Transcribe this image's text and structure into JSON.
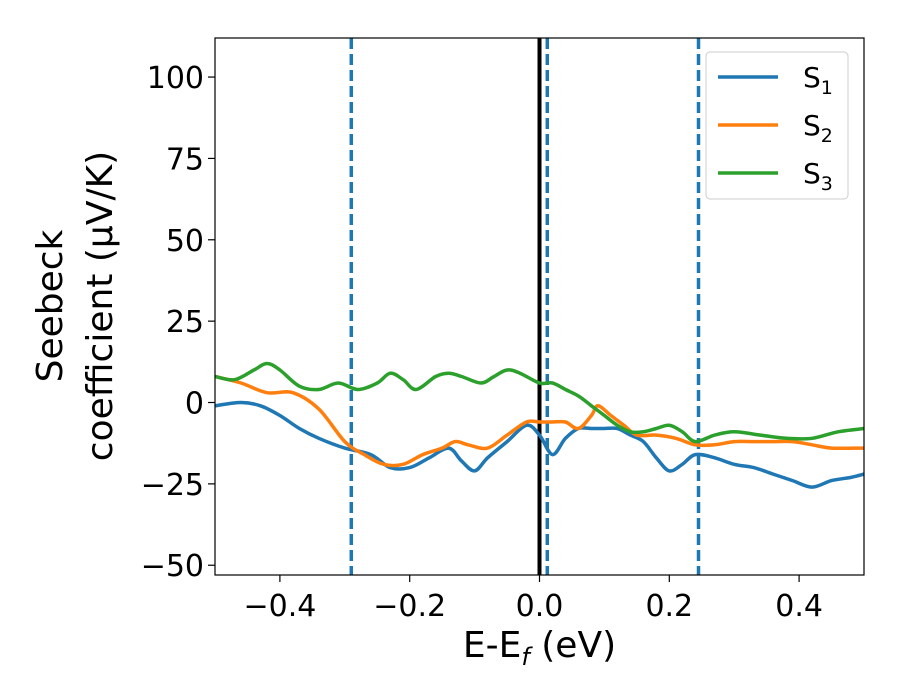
{
  "chart_data": {
    "type": "line",
    "title": "",
    "xlabel": "E-E_f (eV)",
    "xlabel_parts": {
      "main": "E-E",
      "sub": "f",
      "tail": " (eV)"
    },
    "ylabel_line1": "Seebeck",
    "ylabel_line2": "coefficient  (μV/K)",
    "xlim": [
      -0.5,
      0.5
    ],
    "ylim": [
      -53,
      112
    ],
    "xticks": [
      -0.4,
      -0.2,
      0.0,
      0.2,
      0.4
    ],
    "xtick_labels": [
      "−0.4",
      "−0.2",
      "0.0",
      "0.2",
      "0.4"
    ],
    "yticks": [
      -50,
      -25,
      0,
      25,
      50,
      75,
      100
    ],
    "ytick_labels": [
      "−50",
      "−25",
      "0",
      "25",
      "50",
      "75",
      "100"
    ],
    "legend_position": "top-right",
    "vertical_lines": [
      {
        "x": -0.29,
        "style": "dashed",
        "color": "#1f77b4"
      },
      {
        "x": 0.0,
        "style": "solid",
        "color": "#000000"
      },
      {
        "x": 0.012,
        "style": "dashed",
        "color": "#1f77b4"
      },
      {
        "x": 0.245,
        "style": "dashed",
        "color": "#1f77b4"
      }
    ],
    "series": [
      {
        "name": "S1",
        "label_main": "S",
        "label_sub": "1",
        "color": "#1f77b4",
        "x": [
          -0.5,
          -0.46,
          -0.43,
          -0.4,
          -0.37,
          -0.34,
          -0.3,
          -0.26,
          -0.23,
          -0.2,
          -0.17,
          -0.14,
          -0.12,
          -0.1,
          -0.08,
          -0.05,
          -0.02,
          0.0,
          0.02,
          0.04,
          0.06,
          0.08,
          0.1,
          0.12,
          0.14,
          0.16,
          0.18,
          0.2,
          0.22,
          0.24,
          0.27,
          0.3,
          0.33,
          0.36,
          0.39,
          0.42,
          0.45,
          0.48,
          0.5
        ],
        "values": [
          -1,
          0,
          -1,
          -4,
          -8,
          -11,
          -14,
          -16,
          -20,
          -20,
          -17,
          -14,
          -18,
          -21,
          -17,
          -12,
          -7,
          -10,
          -16,
          -11,
          -8,
          -8,
          -8,
          -8,
          -10,
          -12,
          -17,
          -21,
          -19,
          -16,
          -17,
          -19,
          -20,
          -22,
          -24,
          -26,
          -24,
          -23,
          -22
        ]
      },
      {
        "name": "S2",
        "label_main": "S",
        "label_sub": "2",
        "color": "#ff7f0e",
        "x": [
          -0.5,
          -0.46,
          -0.42,
          -0.38,
          -0.34,
          -0.3,
          -0.27,
          -0.24,
          -0.21,
          -0.18,
          -0.15,
          -0.13,
          -0.11,
          -0.08,
          -0.05,
          -0.02,
          0.0,
          0.02,
          0.04,
          0.06,
          0.08,
          0.09,
          0.11,
          0.13,
          0.15,
          0.18,
          0.21,
          0.24,
          0.27,
          0.3,
          0.33,
          0.36,
          0.39,
          0.42,
          0.45,
          0.5
        ],
        "values": [
          8,
          6,
          3,
          3,
          -2,
          -12,
          -16,
          -19,
          -19,
          -16,
          -14,
          -12,
          -13,
          -14,
          -10,
          -6,
          -6,
          -6,
          -6,
          -8,
          -4,
          -1,
          -4,
          -7,
          -10,
          -10,
          -11,
          -13,
          -13,
          -12,
          -12,
          -12,
          -12,
          -13,
          -14,
          -14
        ]
      },
      {
        "name": "S3",
        "label_main": "S",
        "label_sub": "3",
        "color": "#2ca02c",
        "x": [
          -0.5,
          -0.47,
          -0.44,
          -0.42,
          -0.4,
          -0.37,
          -0.34,
          -0.31,
          -0.28,
          -0.25,
          -0.23,
          -0.21,
          -0.19,
          -0.16,
          -0.14,
          -0.12,
          -0.09,
          -0.07,
          -0.05,
          -0.03,
          0.0,
          0.02,
          0.04,
          0.06,
          0.08,
          0.1,
          0.12,
          0.14,
          0.16,
          0.18,
          0.2,
          0.22,
          0.24,
          0.27,
          0.3,
          0.34,
          0.38,
          0.42,
          0.46,
          0.5
        ],
        "values": [
          8,
          7,
          10,
          12,
          10,
          5,
          4,
          6,
          4,
          6,
          9,
          7,
          4,
          8,
          9,
          8,
          6,
          8,
          10,
          9,
          6,
          6,
          4,
          2,
          -1,
          -4,
          -7,
          -9,
          -9,
          -8,
          -7,
          -9,
          -12,
          -10,
          -9,
          -10,
          -11,
          -11,
          -9,
          -8
        ]
      }
    ]
  }
}
